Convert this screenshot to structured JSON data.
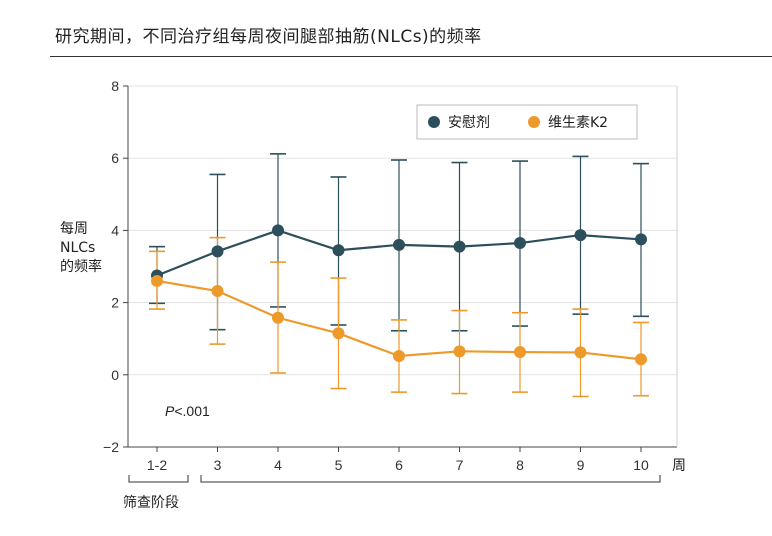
{
  "title": "研究期间，不同治疗组每周夜间腿部抽筋(NLCs)的频率",
  "chart_data": {
    "type": "line",
    "categories": [
      "1-2",
      "3",
      "4",
      "5",
      "6",
      "7",
      "8",
      "9",
      "10"
    ],
    "x_unit_label": "周",
    "ylabel_lines": [
      "每周",
      "NLCs",
      "的频率"
    ],
    "ylim": [
      -2,
      8
    ],
    "yticks": [
      -2,
      0,
      2,
      4,
      6,
      8
    ],
    "ytick_labels": [
      "−2",
      "0",
      "2",
      "4",
      "6",
      "8"
    ],
    "grid": "horizontal",
    "legend_position": "top-right",
    "series": [
      {
        "name": "安慰剂",
        "color": "#2d4f5c",
        "values": [
          2.75,
          3.42,
          4.0,
          3.45,
          3.6,
          3.55,
          3.65,
          3.87,
          3.75
        ],
        "upper": [
          3.55,
          5.55,
          6.12,
          5.48,
          5.95,
          5.88,
          5.92,
          6.05,
          5.85
        ],
        "lower": [
          1.98,
          1.25,
          1.88,
          1.38,
          1.22,
          1.22,
          1.35,
          1.68,
          1.62
        ]
      },
      {
        "name": "维生素K2",
        "color": "#ed9a2b",
        "values": [
          2.6,
          2.32,
          1.58,
          1.15,
          0.52,
          0.65,
          0.63,
          0.62,
          0.43
        ],
        "upper": [
          3.42,
          3.8,
          3.12,
          2.68,
          1.52,
          1.78,
          1.72,
          1.82,
          1.45
        ],
        "lower": [
          1.82,
          0.85,
          0.05,
          -0.38,
          -0.48,
          -0.52,
          -0.48,
          -0.6,
          -0.58
        ]
      }
    ],
    "annotation": {
      "p_prefix": "P",
      "p_value": "<.001"
    },
    "phase_label": "筛查阶段"
  }
}
